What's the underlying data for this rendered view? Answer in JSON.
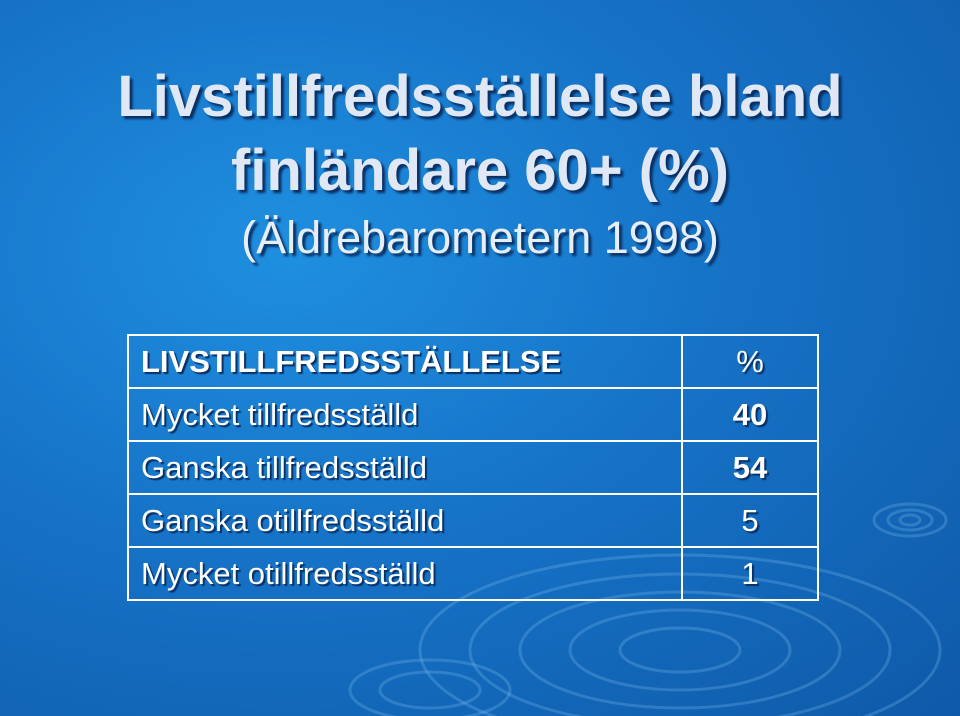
{
  "title": {
    "line1": "Livstillfredsställelse bland",
    "line2": "finländare 60+ (%)",
    "subtitle": "(Äldrebarometern 1998)"
  },
  "table": {
    "header": {
      "label": "LIVSTILLFREDSSTÄLLELSE",
      "value": "%"
    },
    "rows": [
      {
        "label": "Mycket tillfredsställd",
        "value": "40"
      },
      {
        "label": "Ganska tillfredsställd",
        "value": "54"
      },
      {
        "label": "Ganska otillfredsställd",
        "value": "5"
      },
      {
        "label": "Mycket otillfredsställd",
        "value": "1"
      }
    ]
  },
  "colors": {
    "background": "#1673c7",
    "title_text": "#dfe8f4",
    "table_border": "#ffffff"
  }
}
